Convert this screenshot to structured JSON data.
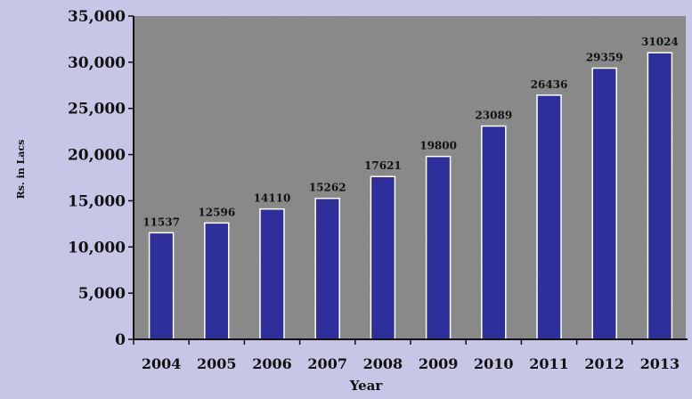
{
  "chart_data": {
    "type": "bar",
    "categories": [
      "2004",
      "2005",
      "2006",
      "2007",
      "2008",
      "2009",
      "2010",
      "2011",
      "2012",
      "2013"
    ],
    "values": [
      11537,
      12596,
      14110,
      15262,
      17621,
      19800,
      23089,
      26436,
      29359,
      31024
    ],
    "value_labels": [
      "11537",
      "12596",
      "14110",
      "15262",
      "17621",
      "19800",
      "23089",
      "26436",
      "29359",
      "31024"
    ],
    "yticks": [
      0,
      5000,
      10000,
      15000,
      20000,
      25000,
      30000,
      35000
    ],
    "ytick_labels": [
      "0",
      "5,000",
      "10,000",
      "15,000",
      "20,000",
      "25,000",
      "30,000",
      "35,000"
    ],
    "xlabel": "Year",
    "ylabel": "Rs. in Lacs",
    "ylim": [
      0,
      35000
    ],
    "grid": false,
    "colors": {
      "bar": "#2e2f9a",
      "plot_background": "#8c8c8c",
      "page_background": "#c8c6e6",
      "axis": "#111111"
    }
  }
}
